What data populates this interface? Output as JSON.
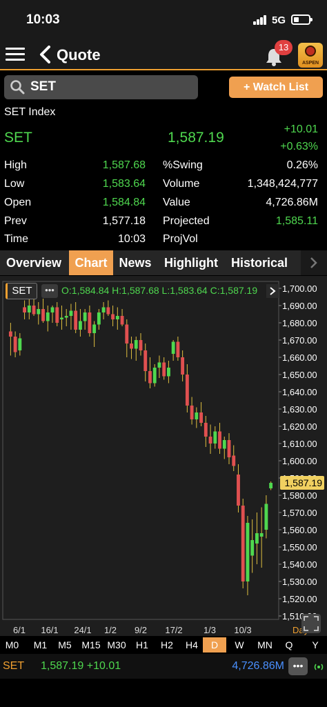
{
  "status_bar": {
    "time": "10:03",
    "network": "5G"
  },
  "nav": {
    "title": "Quote",
    "notification_count": "13",
    "logo_text": "ASPEN"
  },
  "search": {
    "value": "SET",
    "watch_list_label": "+ Watch List"
  },
  "quote": {
    "index_name": "SET Index",
    "symbol": "SET",
    "last": "1,587.19",
    "change": "+10.01",
    "pct_change": "+0.63%",
    "left_rows": [
      {
        "label": "High",
        "value": "1,587.68"
      },
      {
        "label": "Low",
        "value": "1,583.64"
      },
      {
        "label": "Open",
        "value": "1,584.84"
      },
      {
        "label": "Prev",
        "value": "1,577.18"
      },
      {
        "label": "Time",
        "value": "10:03"
      }
    ],
    "right_rows": [
      {
        "label": "%Swing",
        "value": "0.26%"
      },
      {
        "label": "Volume",
        "value": "1,348,424,777"
      },
      {
        "label": "Value",
        "value": "4,726.86M"
      },
      {
        "label": "Projected",
        "value": "1,585.11"
      },
      {
        "label": "ProjVol",
        "value": ""
      }
    ]
  },
  "tabs": [
    "Overview",
    "Chart",
    "News",
    "Highlight",
    "Historical"
  ],
  "active_tab": "Chart",
  "chart_header": {
    "symbol": "SET",
    "ohlc": "O:1,584.84 H:1,587.68 L:1,583.64 C:1,587.19"
  },
  "chart_data": {
    "type": "candlestick",
    "y_ticks": [
      "1,700.00",
      "1,690.00",
      "1,680.00",
      "1,670.00",
      "1,660.00",
      "1,650.00",
      "1,640.00",
      "1,630.00",
      "1,620.00",
      "1,610.00",
      "1,600.00",
      "1,590.00",
      "1,580.00",
      "1,570.00",
      "1,560.00",
      "1,550.00",
      "1,540.00",
      "1,530.00",
      "1,520.00",
      "1,510.00"
    ],
    "x_ticks": [
      "6/1",
      "16/1",
      "24/1",
      "1/2",
      "9/2",
      "17/2",
      "1/3",
      "10/3"
    ],
    "x_unit_label": "Day",
    "ylim": [
      1508,
      1704
    ],
    "last_price_label": "1,587.19",
    "last_price": 1587.19,
    "colors": {
      "up": "#4fd84f",
      "down": "#e05050",
      "wick_up": "#e0c040",
      "wick_down": "#e0c040"
    },
    "candles": [
      [
        1675,
        1680,
        1661,
        1672
      ],
      [
        1672,
        1675,
        1660,
        1663
      ],
      [
        1664,
        1674,
        1661,
        1671
      ],
      [
        1689,
        1693,
        1682,
        1686
      ],
      [
        1686,
        1694,
        1682,
        1690
      ],
      [
        1690,
        1697,
        1684,
        1685
      ],
      [
        1685,
        1692,
        1679,
        1688
      ],
      [
        1688,
        1694,
        1680,
        1681
      ],
      [
        1681,
        1690,
        1675,
        1686
      ],
      [
        1686,
        1690,
        1680,
        1689
      ],
      [
        1689,
        1692,
        1678,
        1680
      ],
      [
        1682,
        1690,
        1676,
        1683
      ],
      [
        1683,
        1688,
        1678,
        1684
      ],
      [
        1684,
        1691,
        1676,
        1687
      ],
      [
        1687,
        1692,
        1674,
        1676
      ],
      [
        1676,
        1688,
        1672,
        1681
      ],
      [
        1681,
        1688,
        1676,
        1686
      ],
      [
        1686,
        1690,
        1672,
        1674
      ],
      [
        1674,
        1681,
        1666,
        1679
      ],
      [
        1679,
        1688,
        1676,
        1686
      ],
      [
        1686,
        1692,
        1682,
        1689
      ],
      [
        1689,
        1693,
        1684,
        1685
      ],
      [
        1685,
        1690,
        1678,
        1682
      ],
      [
        1682,
        1689,
        1676,
        1684
      ],
      [
        1684,
        1688,
        1678,
        1679
      ],
      [
        1679,
        1682,
        1660,
        1668
      ],
      [
        1668,
        1672,
        1659,
        1665
      ],
      [
        1665,
        1672,
        1658,
        1670
      ],
      [
        1670,
        1674,
        1661,
        1664
      ],
      [
        1664,
        1668,
        1646,
        1652
      ],
      [
        1652,
        1660,
        1642,
        1645
      ],
      [
        1645,
        1656,
        1643,
        1654
      ],
      [
        1654,
        1661,
        1648,
        1657
      ],
      [
        1657,
        1660,
        1647,
        1649
      ],
      [
        1649,
        1658,
        1645,
        1654
      ],
      [
        1662,
        1670,
        1658,
        1669
      ],
      [
        1669,
        1672,
        1658,
        1660
      ],
      [
        1660,
        1664,
        1646,
        1650
      ],
      [
        1650,
        1656,
        1628,
        1632
      ],
      [
        1632,
        1637,
        1621,
        1624
      ],
      [
        1624,
        1631,
        1619,
        1628
      ],
      [
        1628,
        1634,
        1620,
        1622
      ],
      [
        1622,
        1626,
        1608,
        1614
      ],
      [
        1614,
        1621,
        1604,
        1610
      ],
      [
        1610,
        1620,
        1607,
        1617
      ],
      [
        1617,
        1622,
        1604,
        1607
      ],
      [
        1607,
        1614,
        1601,
        1612
      ],
      [
        1612,
        1616,
        1598,
        1602
      ],
      [
        1603,
        1609,
        1594,
        1597
      ],
      [
        1592,
        1598,
        1570,
        1574
      ],
      [
        1574,
        1578,
        1526,
        1530
      ],
      [
        1530,
        1568,
        1522,
        1564
      ],
      [
        1545,
        1566,
        1535,
        1554
      ],
      [
        1552,
        1570,
        1540,
        1558
      ],
      [
        1556,
        1573,
        1538,
        1558
      ],
      [
        1560,
        1580,
        1555,
        1575
      ],
      [
        1584,
        1588,
        1583,
        1587.19
      ]
    ]
  },
  "timeframes": [
    "M0",
    "M1",
    "M5",
    "M15",
    "M30",
    "H1",
    "H2",
    "H4",
    "D",
    "W",
    "MN",
    "Q",
    "Y"
  ],
  "active_timeframe": "D",
  "ticker": {
    "symbol": "SET",
    "price_change": "1,587.19 +10.01",
    "value": "4,726.86M"
  }
}
